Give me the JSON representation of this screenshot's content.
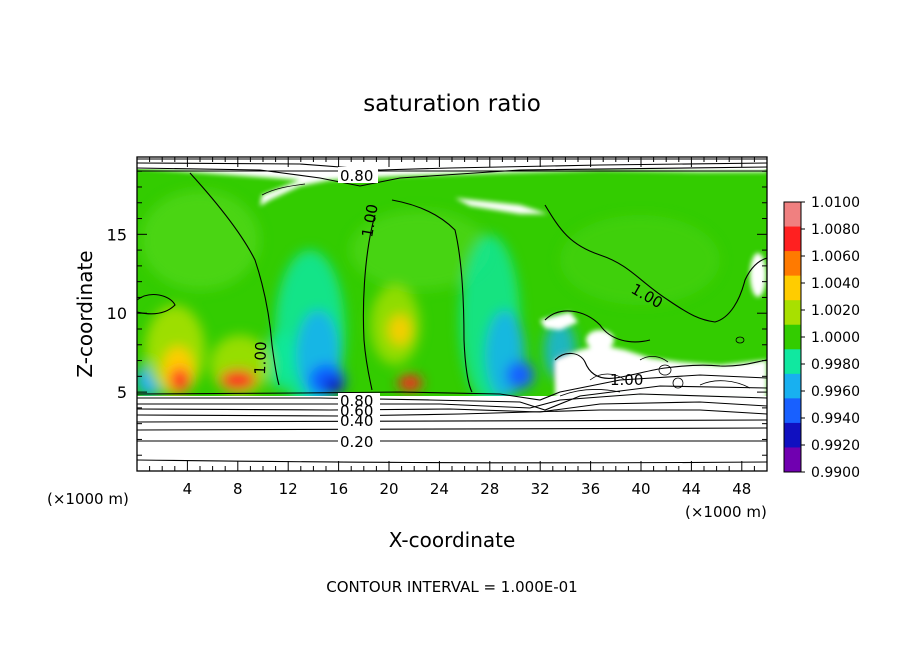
{
  "chart_data": {
    "type": "heatmap",
    "title": "saturation ratio",
    "xlabel": "X-coordinate",
    "ylabel": "Z-coordinate",
    "x_unit_left": "(×1000 m)",
    "x_unit_right": "(×1000 m)",
    "x_ticks": [
      "4",
      "8",
      "12",
      "16",
      "20",
      "24",
      "28",
      "32",
      "36",
      "40",
      "44",
      "48"
    ],
    "x_tick_values": [
      4,
      8,
      12,
      16,
      20,
      24,
      28,
      32,
      36,
      40,
      44,
      48
    ],
    "y_ticks": [
      "5",
      "10",
      "15"
    ],
    "y_tick_values": [
      5,
      10,
      15
    ],
    "xlim": [
      0,
      50
    ],
    "ylim": [
      0,
      19.9
    ],
    "colorbar": {
      "labels": [
        "1.0100",
        "1.0080",
        "1.0060",
        "1.0040",
        "1.0020",
        "1.0000",
        "0.9980",
        "0.9960",
        "0.9940",
        "0.9920",
        "0.9900"
      ],
      "colors": [
        "#f08080",
        "#ff2020",
        "#ff7a00",
        "#ffcc00",
        "#a8e000",
        "#33cc00",
        "#10e8a0",
        "#18b0f0",
        "#1860ff",
        "#1010c0",
        "#7000b0"
      ],
      "range": [
        0.99,
        1.01
      ]
    },
    "contour_labels": [
      "0.80",
      "1.00",
      "1.00",
      "1.00",
      "1.00",
      "0.80",
      "0.60",
      "0.40",
      "0.20"
    ],
    "footer": "CONTOUR INTERVAL = 1.000E-01"
  }
}
